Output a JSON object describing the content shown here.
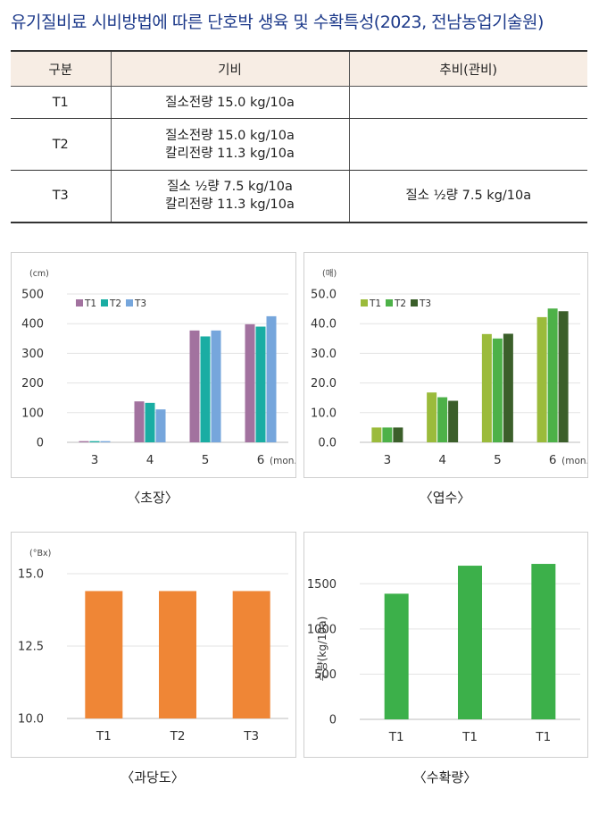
{
  "title": "유기질비료 시비방법에 따른 단호박 생육 및 수확특성(2023, 전남농업기술원)",
  "table": {
    "headers": [
      "구분",
      "기비",
      "추비(관비)"
    ],
    "rows": [
      {
        "label": "T1",
        "basal": [
          "질소전량 15.0 kg/10a"
        ],
        "top": ""
      },
      {
        "label": "T2",
        "basal": [
          "질소전량 15.0 kg/10a",
          "칼리전량 11.3 kg/10a"
        ],
        "top": ""
      },
      {
        "label": "T3",
        "basal": [
          "질소 ½량 7.5 kg/10a",
          "칼리전량 11.3 kg/10a"
        ],
        "top": "질소 ½량 7.5 kg/10a"
      }
    ]
  },
  "captions": [
    "〈초장〉",
    "〈엽수〉",
    "〈과당도〉",
    "〈수확량〉"
  ],
  "chart_data": [
    {
      "type": "bar",
      "title": "〈초장〉",
      "unit": "(cm)",
      "categories": [
        "3",
        "4",
        "5",
        "6"
      ],
      "x_suffix": "(mon.)",
      "ylim": [
        0,
        500
      ],
      "yticks": [
        "0",
        "100",
        "200",
        "300",
        "400",
        "500"
      ],
      "legend": "top-left",
      "series": [
        {
          "name": "T1",
          "color": "#a2729f",
          "values": [
            4,
            138,
            377,
            398
          ]
        },
        {
          "name": "T2",
          "color": "#1aada3",
          "values": [
            4,
            133,
            357,
            390
          ]
        },
        {
          "name": "T3",
          "color": "#76a6dc",
          "values": [
            4,
            111,
            377,
            425
          ]
        }
      ]
    },
    {
      "type": "bar",
      "title": "〈엽수〉",
      "unit": "(매)",
      "categories": [
        "3",
        "4",
        "5",
        "6"
      ],
      "x_suffix": "(mon.)",
      "ylim": [
        0,
        50
      ],
      "yticks": [
        "0.0",
        "10.0",
        "20.0",
        "30.0",
        "40.0",
        "50.0"
      ],
      "legend": "top-left",
      "series": [
        {
          "name": "T1",
          "color": "#9bbb3b",
          "values": [
            5.0,
            16.8,
            36.5,
            42.2
          ]
        },
        {
          "name": "T2",
          "color": "#4db148",
          "values": [
            5.0,
            15.2,
            35.0,
            45.1
          ]
        },
        {
          "name": "T3",
          "color": "#3b5f2a",
          "values": [
            5.0,
            14.0,
            36.6,
            44.2
          ]
        }
      ]
    },
    {
      "type": "bar",
      "title": "〈과당도〉",
      "unit": "(°Bx)",
      "categories": [
        "T1",
        "T2",
        "T3"
      ],
      "ylim": [
        10,
        15
      ],
      "yticks": [
        "10.0",
        "12.5",
        "15.0"
      ],
      "series": [
        {
          "color": "#ef8636",
          "values": [
            14.4,
            14.4,
            14.4
          ]
        }
      ]
    },
    {
      "type": "bar",
      "title": "〈수확량〉",
      "ylabel": "수량(kg/10a)",
      "categories": [
        "T1",
        "T1",
        "T1"
      ],
      "ylim": [
        0,
        1750
      ],
      "yticks": [
        "0",
        "500",
        "1000",
        "1500"
      ],
      "series": [
        {
          "color": "#3cb04a",
          "values": [
            1390,
            1700,
            1720
          ]
        }
      ]
    }
  ]
}
